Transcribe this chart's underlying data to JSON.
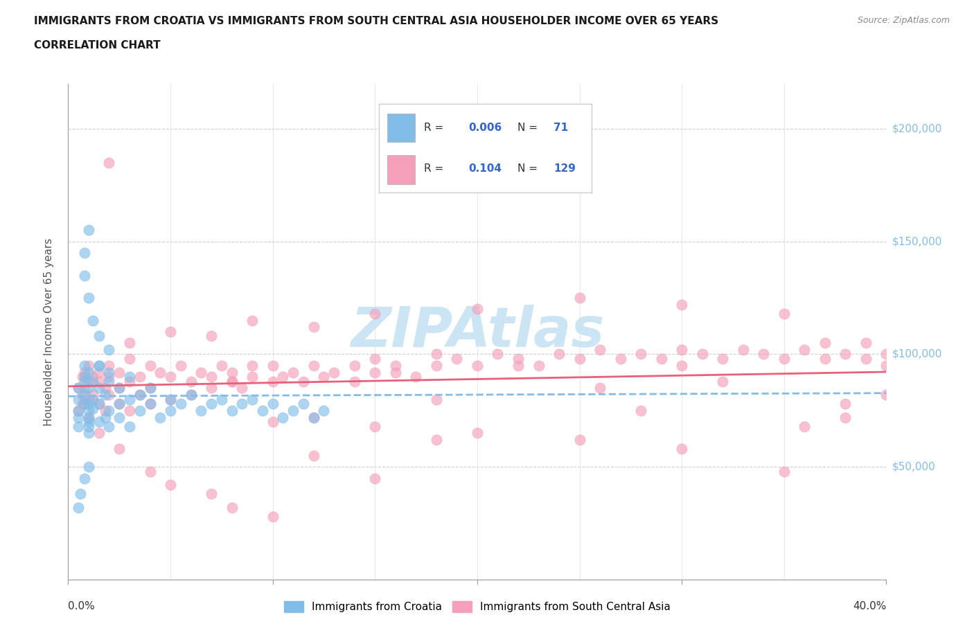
{
  "title_line1": "IMMIGRANTS FROM CROATIA VS IMMIGRANTS FROM SOUTH CENTRAL ASIA HOUSEHOLDER INCOME OVER 65 YEARS",
  "title_line2": "CORRELATION CHART",
  "source_text": "Source: ZipAtlas.com",
  "ylabel": "Householder Income Over 65 years",
  "xlim": [
    0.0,
    0.4
  ],
  "ylim": [
    0,
    220000
  ],
  "ytick_values": [
    50000,
    100000,
    150000,
    200000
  ],
  "ytick_labels": [
    "$50,000",
    "$100,000",
    "$150,000",
    "$200,000"
  ],
  "color_croatia": "#82bde8",
  "color_sca": "#f4a0b8",
  "trend_color_croatia": "#82bde8",
  "trend_color_sca": "#e8607a",
  "background_color": "#ffffff",
  "watermark_color": "#cce5f5",
  "grid_color": "#bbbbbb",
  "croatia_x": [
    0.005,
    0.005,
    0.005,
    0.005,
    0.005,
    0.008,
    0.008,
    0.008,
    0.008,
    0.008,
    0.01,
    0.01,
    0.01,
    0.01,
    0.01,
    0.01,
    0.01,
    0.01,
    0.012,
    0.012,
    0.012,
    0.015,
    0.015,
    0.015,
    0.015,
    0.018,
    0.018,
    0.02,
    0.02,
    0.02,
    0.02,
    0.025,
    0.025,
    0.025,
    0.03,
    0.03,
    0.03,
    0.035,
    0.035,
    0.04,
    0.04,
    0.045,
    0.05,
    0.05,
    0.055,
    0.06,
    0.065,
    0.07,
    0.075,
    0.08,
    0.085,
    0.09,
    0.095,
    0.1,
    0.105,
    0.11,
    0.115,
    0.12,
    0.125,
    0.01,
    0.008,
    0.008,
    0.01,
    0.012,
    0.015,
    0.02,
    0.015,
    0.01,
    0.008,
    0.006,
    0.005
  ],
  "croatia_y": [
    75000,
    80000,
    72000,
    68000,
    85000,
    82000,
    78000,
    90000,
    88000,
    95000,
    70000,
    65000,
    72000,
    85000,
    92000,
    78000,
    68000,
    75000,
    80000,
    88000,
    76000,
    95000,
    85000,
    78000,
    70000,
    82000,
    72000,
    88000,
    75000,
    68000,
    92000,
    78000,
    85000,
    72000,
    80000,
    90000,
    68000,
    75000,
    82000,
    78000,
    85000,
    72000,
    80000,
    75000,
    78000,
    82000,
    75000,
    78000,
    80000,
    75000,
    78000,
    80000,
    75000,
    78000,
    72000,
    75000,
    78000,
    72000,
    75000,
    155000,
    145000,
    135000,
    125000,
    115000,
    108000,
    102000,
    95000,
    50000,
    45000,
    38000,
    32000
  ],
  "sca_x": [
    0.005,
    0.005,
    0.007,
    0.007,
    0.007,
    0.008,
    0.008,
    0.008,
    0.01,
    0.01,
    0.01,
    0.01,
    0.012,
    0.012,
    0.015,
    0.015,
    0.015,
    0.018,
    0.018,
    0.02,
    0.02,
    0.02,
    0.025,
    0.025,
    0.025,
    0.03,
    0.03,
    0.03,
    0.035,
    0.035,
    0.04,
    0.04,
    0.04,
    0.045,
    0.05,
    0.05,
    0.055,
    0.06,
    0.06,
    0.065,
    0.07,
    0.07,
    0.075,
    0.08,
    0.08,
    0.085,
    0.09,
    0.09,
    0.1,
    0.1,
    0.105,
    0.11,
    0.115,
    0.12,
    0.125,
    0.13,
    0.14,
    0.14,
    0.15,
    0.15,
    0.16,
    0.17,
    0.18,
    0.18,
    0.19,
    0.2,
    0.21,
    0.22,
    0.23,
    0.24,
    0.25,
    0.26,
    0.27,
    0.28,
    0.29,
    0.3,
    0.3,
    0.31,
    0.32,
    0.33,
    0.34,
    0.35,
    0.36,
    0.37,
    0.37,
    0.38,
    0.39,
    0.39,
    0.4,
    0.4,
    0.015,
    0.025,
    0.04,
    0.05,
    0.07,
    0.08,
    0.1,
    0.12,
    0.15,
    0.18,
    0.02,
    0.03,
    0.05,
    0.07,
    0.09,
    0.12,
    0.15,
    0.2,
    0.25,
    0.3,
    0.35,
    0.38,
    0.1,
    0.15,
    0.2,
    0.25,
    0.3,
    0.35,
    0.08,
    0.18,
    0.28,
    0.36,
    0.22,
    0.32,
    0.4,
    0.16,
    0.26,
    0.38,
    0.12
  ],
  "sca_y": [
    85000,
    75000,
    90000,
    82000,
    78000,
    92000,
    85000,
    78000,
    88000,
    95000,
    80000,
    72000,
    90000,
    82000,
    88000,
    78000,
    92000,
    85000,
    75000,
    90000,
    82000,
    95000,
    85000,
    78000,
    92000,
    88000,
    75000,
    98000,
    82000,
    90000,
    95000,
    85000,
    78000,
    92000,
    90000,
    80000,
    95000,
    88000,
    82000,
    92000,
    90000,
    85000,
    95000,
    88000,
    92000,
    85000,
    95000,
    90000,
    88000,
    95000,
    90000,
    92000,
    88000,
    95000,
    90000,
    92000,
    95000,
    88000,
    98000,
    92000,
    95000,
    90000,
    100000,
    95000,
    98000,
    95000,
    100000,
    98000,
    95000,
    100000,
    98000,
    102000,
    98000,
    100000,
    98000,
    102000,
    95000,
    100000,
    98000,
    102000,
    100000,
    98000,
    102000,
    98000,
    105000,
    100000,
    98000,
    105000,
    100000,
    95000,
    65000,
    58000,
    48000,
    42000,
    38000,
    32000,
    28000,
    55000,
    45000,
    62000,
    185000,
    105000,
    110000,
    108000,
    115000,
    112000,
    118000,
    120000,
    125000,
    122000,
    118000,
    72000,
    70000,
    68000,
    65000,
    62000,
    58000,
    48000,
    88000,
    80000,
    75000,
    68000,
    95000,
    88000,
    82000,
    92000,
    85000,
    78000,
    72000
  ]
}
